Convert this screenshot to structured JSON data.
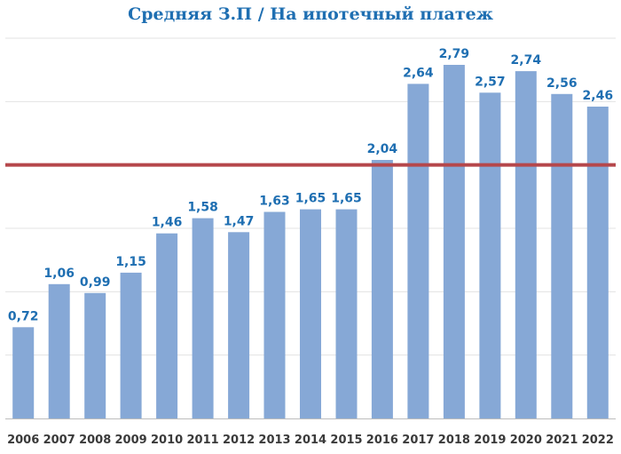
{
  "chart_data": {
    "type": "bar",
    "title": "Средняя З.П / На ипотечный платеж",
    "categories": [
      "2006",
      "2007",
      "2008",
      "2009",
      "2010",
      "2011",
      "2012",
      "2013",
      "2014",
      "2015",
      "2016",
      "2017",
      "2018",
      "2019",
      "2020",
      "2021",
      "2022"
    ],
    "values": [
      0.72,
      1.06,
      0.99,
      1.15,
      1.46,
      1.58,
      1.47,
      1.63,
      1.65,
      1.65,
      2.04,
      2.64,
      2.79,
      2.57,
      2.74,
      2.56,
      2.46
    ],
    "value_labels": [
      "0,72",
      "1,06",
      "0,99",
      "1,15",
      "1,46",
      "1,58",
      "1,47",
      "1,63",
      "1,65",
      "1,65",
      "2,04",
      "2,64",
      "2,79",
      "2,57",
      "2,74",
      "2,56",
      "2,46"
    ],
    "reference_line": 2.0,
    "ylim": [
      0,
      3.0
    ],
    "grid": true,
    "xlabel": "",
    "ylabel": "",
    "colors": {
      "bar": "#86a8d6",
      "data_label": "#1f6fb2",
      "title": "#1f6fb2",
      "reference_line": "#b5474b"
    }
  }
}
